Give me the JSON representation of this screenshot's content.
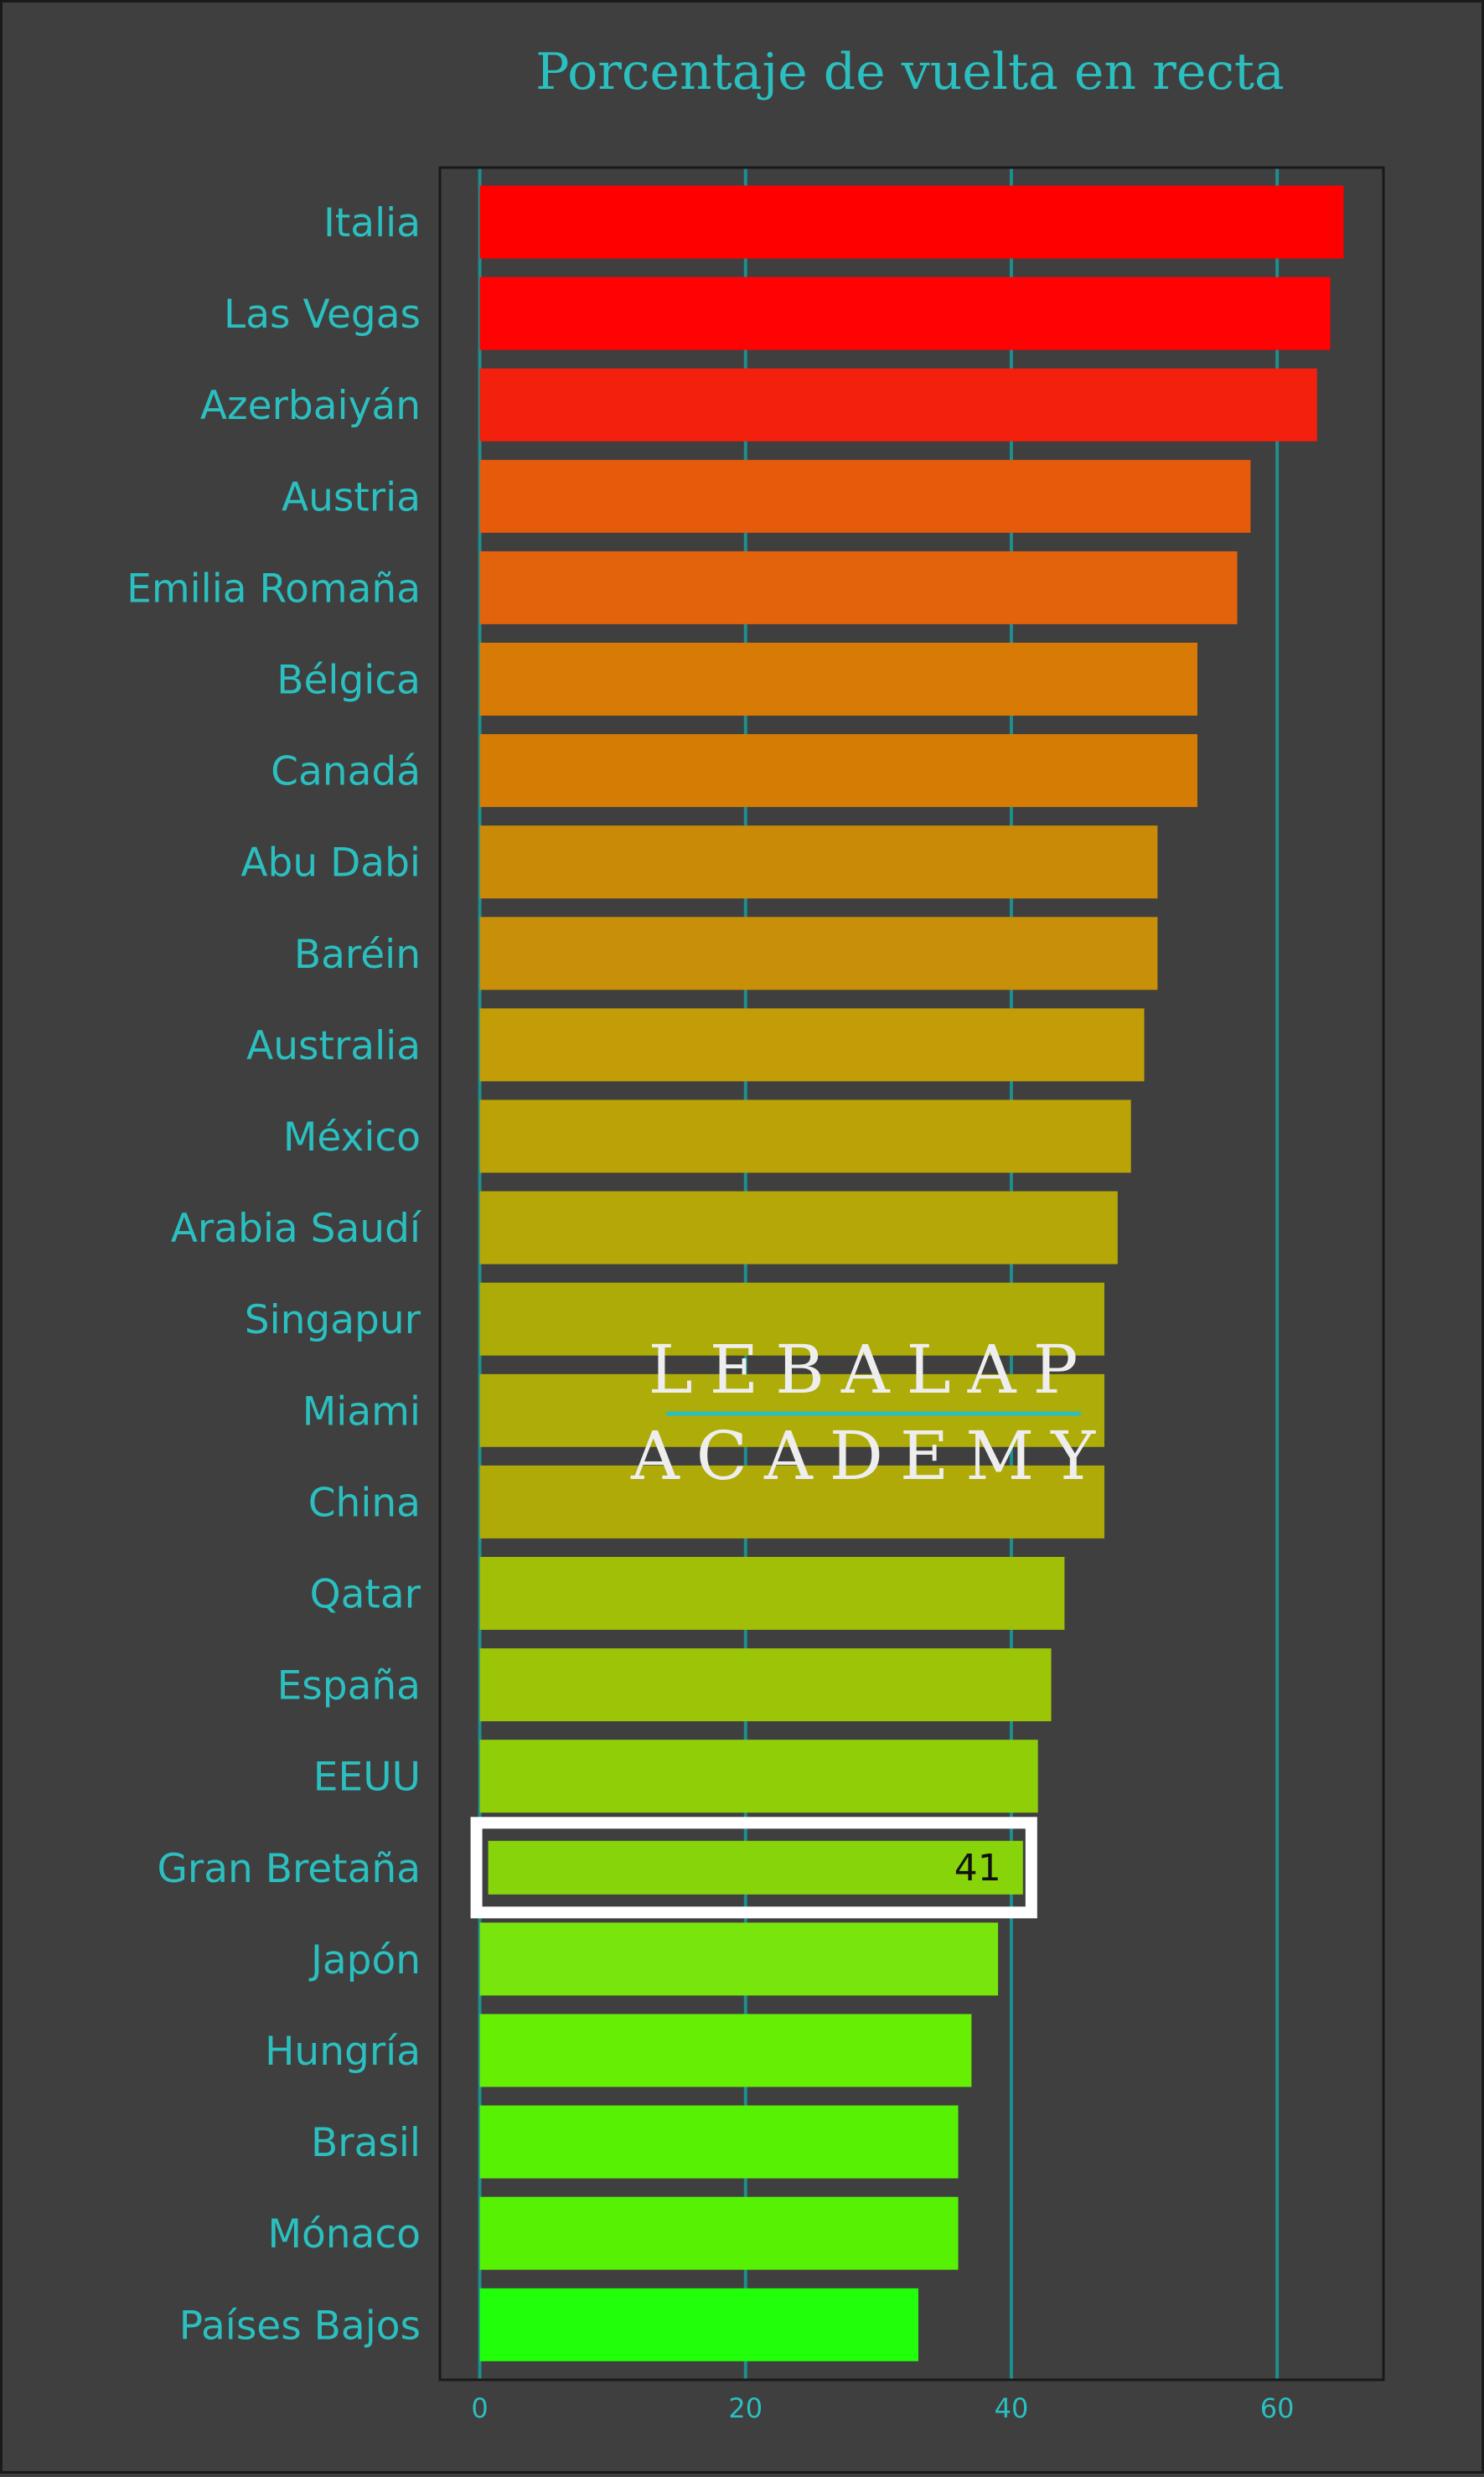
{
  "chart_data": {
    "type": "bar",
    "orientation": "horizontal",
    "title": "Porcentaje de vuelta en recta",
    "xlabel": "",
    "ylabel": "",
    "xlim": [
      -3,
      68
    ],
    "xticks": [
      0,
      20,
      40,
      60
    ],
    "grid": "vertical",
    "legend": "none",
    "categories": [
      "Italia",
      "Las Vegas",
      "Azerbaiyán",
      "Austria",
      "Emilia Romaña",
      "Bélgica",
      "Canadá",
      "Abu Dabi",
      "Baréin",
      "Australia",
      "México",
      "Arabia Saudí",
      "Singapur",
      "Miami",
      "China",
      "Qatar",
      "España",
      "EEUU",
      "Gran Bretaña",
      "Japón",
      "Hungría",
      "Brasil",
      "Mónaco",
      "Países Bajos"
    ],
    "values": [
      65,
      64,
      63,
      58,
      57,
      54,
      54,
      51,
      51,
      50,
      49,
      48,
      47,
      47,
      47,
      44,
      43,
      42,
      41,
      39,
      37,
      36,
      36,
      33
    ],
    "colors": [
      "#ff0000",
      "#fe0204",
      "#f2200c",
      "#e55a0b",
      "#e2630b",
      "#d87b06",
      "#d57c05",
      "#c98a08",
      "#c88f08",
      "#c39d08",
      "#bba206",
      "#b5a708",
      "#acab08",
      "#aeac08",
      "#afaa08",
      "#a0bf06",
      "#9cc507",
      "#90ce08",
      "#87d40b",
      "#78e50c",
      "#66ee03",
      "#57f203",
      "#57f203",
      "#22ff0b"
    ],
    "highlight": {
      "category": "Gran Bretaña",
      "label": "41"
    }
  },
  "watermark": {
    "line1": "LEBALAP",
    "line2": "ACADEMY"
  },
  "style": {
    "background": "#3f3f3f",
    "text_color": "#2bbfbf",
    "grid_color": "#1e8e8e",
    "frame_color": "#1a1a1a"
  }
}
